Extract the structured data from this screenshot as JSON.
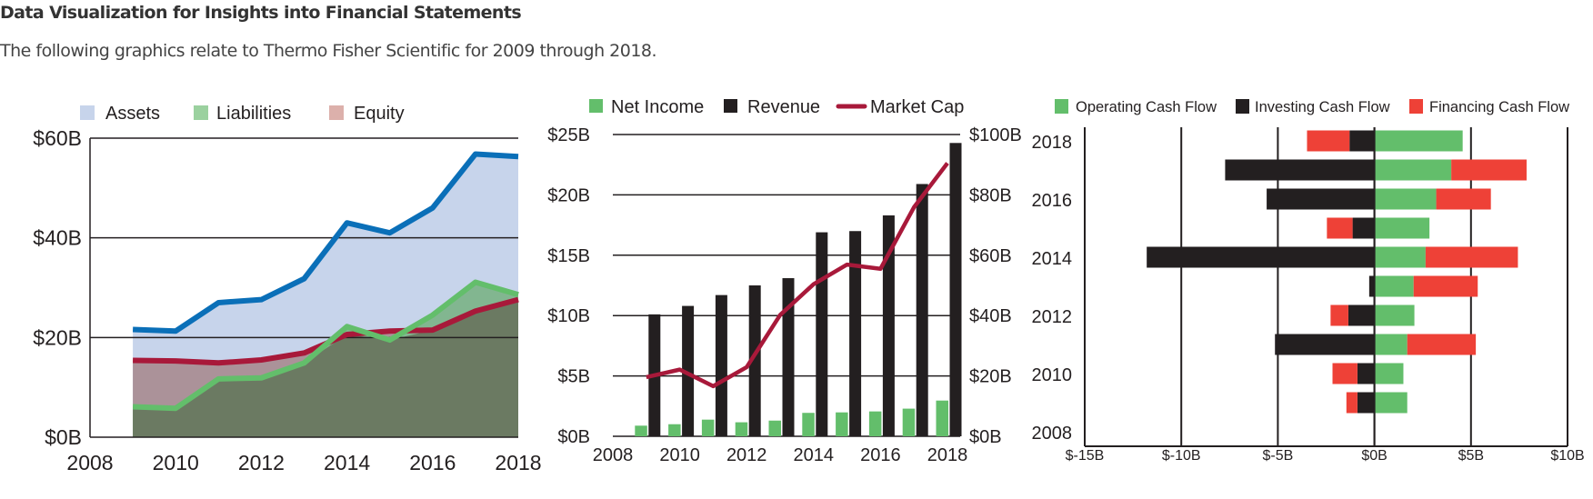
{
  "page": {
    "title": "Data Visualization for Insights into Financial Statements",
    "subtitle": "The following graphics relate to Thermo Fisher Scientific for 2009 through 2018."
  },
  "colors": {
    "assets_line": "#0a6fb8",
    "assets_fill": "#c7d4eb",
    "liabilities_line": "#63be6b",
    "liabilities_fill": "#82b690",
    "equity_line": "#a8193a",
    "equity_fill": "#ab9299",
    "overlap_fill": "#6b7a62",
    "net_income": "#63be6b",
    "revenue": "#231f20",
    "market_cap": "#a8193a",
    "operating": "#63be6b",
    "investing": "#231f20",
    "financing": "#ee4137"
  },
  "chart_data": [
    {
      "type": "area",
      "legend": [
        "Assets",
        "Liabilities",
        "Equity"
      ],
      "legend_swatches": [
        "#c7d4eb",
        "#9bd19f",
        "#dcb0ab"
      ],
      "x": [
        2009,
        2010,
        2011,
        2012,
        2013,
        2014,
        2015,
        2016,
        2017,
        2018
      ],
      "series": [
        {
          "name": "Assets",
          "values": [
            21.6,
            21.3,
            27.0,
            27.6,
            31.8,
            43.0,
            41.0,
            46.0,
            56.8,
            56.3
          ]
        },
        {
          "name": "Liabilities",
          "values": [
            6.1,
            5.8,
            11.7,
            11.9,
            14.9,
            22.2,
            19.5,
            24.5,
            31.1,
            28.6
          ]
        },
        {
          "name": "Equity",
          "values": [
            15.4,
            15.3,
            14.9,
            15.5,
            16.9,
            20.6,
            21.3,
            21.5,
            25.3,
            27.6
          ]
        }
      ],
      "xlim": [
        2008,
        2018
      ],
      "ylim": [
        0,
        60
      ],
      "x_ticks": [
        "2008",
        "2010",
        "2012",
        "2014",
        "2016",
        "2018"
      ],
      "y_ticks": [
        "$0B",
        "$20B",
        "$40B",
        "$60B"
      ],
      "grid": true,
      "legend_position": "top"
    },
    {
      "type": "bar",
      "legend": [
        "Net Income",
        "Revenue",
        "Market Cap"
      ],
      "x": [
        2009,
        2010,
        2011,
        2012,
        2013,
        2014,
        2015,
        2016,
        2017,
        2018
      ],
      "series": [
        {
          "name": "Net Income",
          "type": "bar",
          "axis": "left",
          "values": [
            0.88,
            1.0,
            1.38,
            1.16,
            1.3,
            1.94,
            1.98,
            2.06,
            2.29,
            2.96
          ]
        },
        {
          "name": "Revenue",
          "type": "bar",
          "axis": "left",
          "values": [
            10.1,
            10.8,
            11.7,
            12.5,
            13.1,
            16.9,
            17.0,
            18.3,
            20.9,
            24.3
          ]
        },
        {
          "name": "Market Cap",
          "type": "line",
          "axis": "right",
          "values": [
            19.6,
            22.1,
            16.6,
            22.9,
            40.2,
            50.4,
            56.9,
            55.5,
            75.9,
            90.5
          ]
        }
      ],
      "xlim": [
        2008,
        2018
      ],
      "ylim_left": [
        0,
        25
      ],
      "ylim_right": [
        0,
        100
      ],
      "x_ticks": [
        "2008",
        "2010",
        "2012",
        "2014",
        "2016",
        "2018"
      ],
      "y_ticks_left": [
        "$0B",
        "$5B",
        "$10B",
        "$15B",
        "$20B",
        "$25B"
      ],
      "y_ticks_right": [
        "$0B",
        "$20B",
        "$40B",
        "$60B",
        "$80B",
        "$100B"
      ],
      "grid": true,
      "legend_position": "top"
    },
    {
      "type": "bar",
      "orientation": "horizontal",
      "stacked": true,
      "legend": [
        "Operating Cash Flow",
        "Investing Cash Flow",
        "Financing Cash Flow"
      ],
      "categories": [
        2009,
        2010,
        2011,
        2012,
        2013,
        2014,
        2015,
        2016,
        2017,
        2018
      ],
      "series": [
        {
          "name": "Operating Cash Flow",
          "values": [
            1.7,
            1.5,
            1.7,
            2.07,
            2.03,
            2.65,
            2.85,
            3.2,
            3.98,
            4.57
          ]
        },
        {
          "name": "Investing Cash Flow",
          "values": [
            -0.88,
            -0.88,
            -5.15,
            -1.35,
            -0.27,
            -11.79,
            -1.13,
            -5.58,
            -7.73,
            -1.29
          ]
        },
        {
          "name": "Financing Cash Flow",
          "values": [
            -0.57,
            -1.29,
            3.55,
            -0.92,
            3.32,
            4.78,
            -1.33,
            2.83,
            3.9,
            -2.2
          ]
        }
      ],
      "xlim": [
        -15,
        10
      ],
      "ylim": [
        2008,
        2018
      ],
      "x_ticks": [
        "$-15B",
        "$-10B",
        "$-5B",
        "$0B",
        "$5B",
        "$10B"
      ],
      "y_ticks": [
        "2008",
        "2010",
        "2012",
        "2014",
        "2016",
        "2018"
      ],
      "grid": true,
      "legend_position": "top"
    }
  ]
}
